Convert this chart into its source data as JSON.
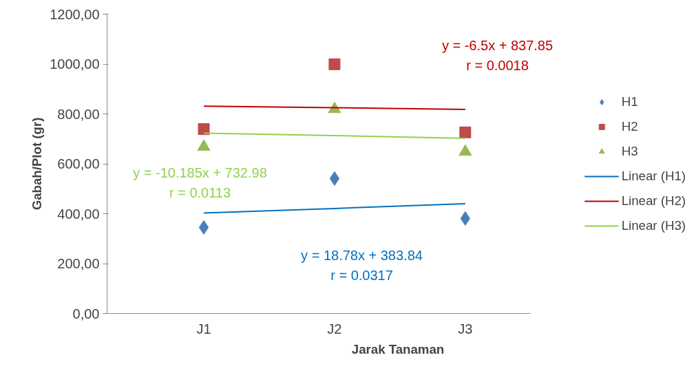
{
  "chart_data": {
    "type": "scatter",
    "xlabel": "Jarak Tanaman",
    "ylabel": "Gabah/Plot (gr)",
    "categories": [
      "J1",
      "J2",
      "J3"
    ],
    "series": [
      {
        "name": "H1",
        "color": "#4a7ebb",
        "marker": "diamond",
        "values": [
          345,
          541,
          381
        ]
      },
      {
        "name": "H2",
        "color": "#be4b48",
        "marker": "square",
        "values": [
          739,
          999,
          726
        ]
      },
      {
        "name": "H3",
        "color": "#98b954",
        "marker": "triangle",
        "values": [
          668,
          819,
          648
        ]
      },
      {
        "name": "Linear (H1)",
        "type": "line",
        "color": "#0070c0",
        "marker": "none",
        "values": [
          403,
          421,
          440
        ]
      },
      {
        "name": "Linear (H2)",
        "type": "line",
        "color": "#c00000",
        "marker": "none",
        "values": [
          831,
          825,
          818
        ]
      },
      {
        "name": "Linear (H3)",
        "type": "line",
        "color": "#92d050",
        "marker": "none",
        "values": [
          723,
          713,
          702
        ]
      }
    ],
    "annotations": [
      "y = 18.78x + 383.84\nr = 0.0317",
      "y = -6.5x + 837.85\nr = 0.0018",
      "y = -10.185x + 732.98\nr = 0.0113"
    ],
    "ylim": [
      0,
      1200
    ],
    "yticks": [
      {
        "value": 0,
        "label": "0,00"
      },
      {
        "value": 200,
        "label": "200,00"
      },
      {
        "value": 400,
        "label": "400,00"
      },
      {
        "value": 600,
        "label": "600,00"
      },
      {
        "value": 800,
        "label": "800,00"
      },
      {
        "value": 1000,
        "label": "1000,00"
      },
      {
        "value": 1200,
        "label": "1200,00"
      }
    ],
    "grid": false,
    "legend": "right"
  }
}
